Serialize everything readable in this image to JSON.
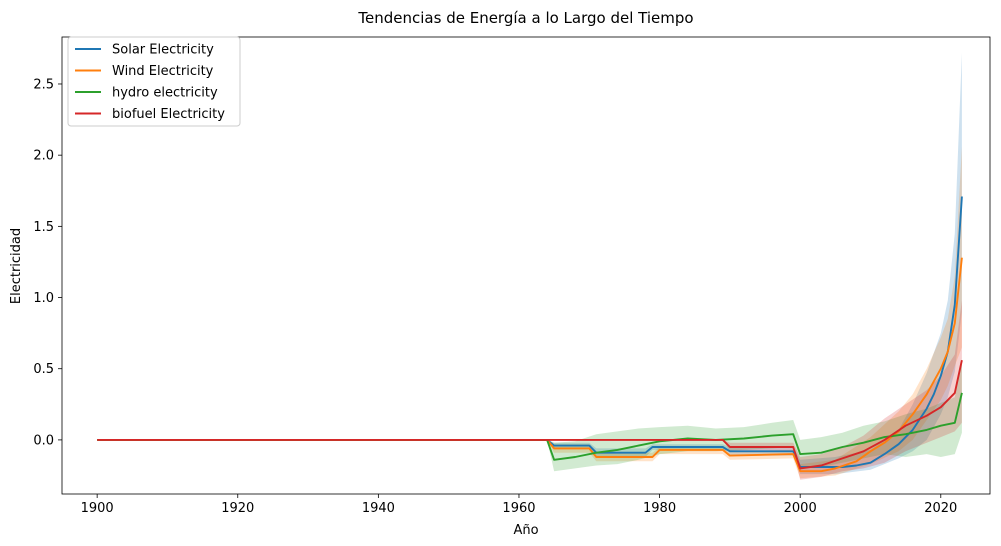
{
  "chart_data": {
    "type": "line",
    "title": "Tendencias de Energía a lo Largo del Tiempo",
    "xlabel": "Año",
    "ylabel": "Electricidad",
    "xlim": [
      1895,
      2027
    ],
    "ylim": [
      -0.38,
      2.83
    ],
    "xticks": [
      1900,
      1920,
      1940,
      1960,
      1980,
      2000,
      2020
    ],
    "yticks": [
      0.0,
      0.5,
      1.0,
      1.5,
      2.0,
      2.5
    ],
    "ytick_labels": [
      "0.0",
      "0.5",
      "1.0",
      "1.5",
      "2.0",
      "2.5"
    ],
    "grid": false,
    "legend_position": "top-left",
    "series": [
      {
        "name": "Solar Electricity",
        "color": "#1f77b4",
        "points": [
          [
            1900,
            0
          ],
          [
            1964,
            0
          ],
          [
            1965,
            -0.04
          ],
          [
            1970,
            -0.04
          ],
          [
            1971,
            -0.09
          ],
          [
            1978,
            -0.09
          ],
          [
            1979,
            -0.05
          ],
          [
            1989,
            -0.05
          ],
          [
            1990,
            -0.08
          ],
          [
            1999,
            -0.08
          ],
          [
            2000,
            -0.19
          ],
          [
            2004,
            -0.19
          ],
          [
            2006,
            -0.19
          ],
          [
            2008,
            -0.18
          ],
          [
            2010,
            -0.16
          ],
          [
            2012,
            -0.1
          ],
          [
            2014,
            -0.03
          ],
          [
            2016,
            0.07
          ],
          [
            2018,
            0.22
          ],
          [
            2019,
            0.32
          ],
          [
            2020,
            0.45
          ],
          [
            2021,
            0.62
          ],
          [
            2022,
            0.95
          ],
          [
            2023,
            1.71
          ]
        ],
        "ci_upper": [
          [
            1964,
            0
          ],
          [
            1965,
            -0.02
          ],
          [
            1970,
            -0.02
          ],
          [
            1971,
            -0.06
          ],
          [
            1978,
            -0.06
          ],
          [
            1979,
            -0.03
          ],
          [
            1989,
            -0.03
          ],
          [
            1990,
            -0.05
          ],
          [
            1999,
            -0.05
          ],
          [
            2000,
            -0.14
          ],
          [
            2005,
            -0.12
          ],
          [
            2010,
            -0.07
          ],
          [
            2014,
            0.07
          ],
          [
            2016,
            0.25
          ],
          [
            2018,
            0.47
          ],
          [
            2020,
            0.75
          ],
          [
            2021,
            0.98
          ],
          [
            2022,
            1.45
          ],
          [
            2023,
            2.72
          ]
        ],
        "ci_lower": [
          [
            1964,
            0
          ],
          [
            1965,
            -0.06
          ],
          [
            1970,
            -0.06
          ],
          [
            1971,
            -0.12
          ],
          [
            1978,
            -0.12
          ],
          [
            1979,
            -0.07
          ],
          [
            1989,
            -0.07
          ],
          [
            1990,
            -0.11
          ],
          [
            1999,
            -0.11
          ],
          [
            2000,
            -0.24
          ],
          [
            2005,
            -0.24
          ],
          [
            2010,
            -0.21
          ],
          [
            2014,
            -0.13
          ],
          [
            2016,
            -0.08
          ],
          [
            2018,
            0.0
          ],
          [
            2020,
            0.18
          ],
          [
            2021,
            0.3
          ],
          [
            2022,
            0.48
          ],
          [
            2023,
            0.9
          ]
        ]
      },
      {
        "name": "Wind Electricity",
        "color": "#ff7f0e",
        "points": [
          [
            1900,
            0
          ],
          [
            1964,
            0
          ],
          [
            1965,
            -0.06
          ],
          [
            1970,
            -0.06
          ],
          [
            1971,
            -0.12
          ],
          [
            1979,
            -0.12
          ],
          [
            1980,
            -0.07
          ],
          [
            1989,
            -0.07
          ],
          [
            1990,
            -0.11
          ],
          [
            1999,
            -0.1
          ],
          [
            2000,
            -0.22
          ],
          [
            2003,
            -0.22
          ],
          [
            2005,
            -0.2
          ],
          [
            2008,
            -0.15
          ],
          [
            2010,
            -0.08
          ],
          [
            2012,
            -0.02
          ],
          [
            2014,
            0.06
          ],
          [
            2016,
            0.18
          ],
          [
            2018,
            0.32
          ],
          [
            2020,
            0.5
          ],
          [
            2021,
            0.62
          ],
          [
            2022,
            0.82
          ],
          [
            2023,
            1.28
          ]
        ],
        "ci_upper": [
          [
            1964,
            0
          ],
          [
            1965,
            -0.03
          ],
          [
            1970,
            -0.03
          ],
          [
            1971,
            -0.09
          ],
          [
            1979,
            -0.09
          ],
          [
            1980,
            -0.05
          ],
          [
            1989,
            -0.05
          ],
          [
            1990,
            -0.08
          ],
          [
            1999,
            -0.07
          ],
          [
            2000,
            -0.17
          ],
          [
            2005,
            -0.14
          ],
          [
            2010,
            0.02
          ],
          [
            2014,
            0.2
          ],
          [
            2016,
            0.32
          ],
          [
            2018,
            0.5
          ],
          [
            2020,
            0.72
          ],
          [
            2021,
            0.85
          ],
          [
            2022,
            1.15
          ],
          [
            2023,
            2.06
          ]
        ],
        "ci_lower": [
          [
            1964,
            0
          ],
          [
            1965,
            -0.09
          ],
          [
            1970,
            -0.09
          ],
          [
            1971,
            -0.15
          ],
          [
            1979,
            -0.15
          ],
          [
            1980,
            -0.1
          ],
          [
            1989,
            -0.1
          ],
          [
            1990,
            -0.14
          ],
          [
            1999,
            -0.13
          ],
          [
            2000,
            -0.27
          ],
          [
            2005,
            -0.25
          ],
          [
            2010,
            -0.17
          ],
          [
            2014,
            -0.08
          ],
          [
            2016,
            0.0
          ],
          [
            2018,
            0.14
          ],
          [
            2020,
            0.28
          ],
          [
            2021,
            0.38
          ],
          [
            2022,
            0.52
          ],
          [
            2023,
            0.65
          ]
        ]
      },
      {
        "name": "hydro electricity",
        "color": "#2ca02c",
        "points": [
          [
            1900,
            0
          ],
          [
            1964,
            0
          ],
          [
            1965,
            -0.14
          ],
          [
            1968,
            -0.12
          ],
          [
            1971,
            -0.09
          ],
          [
            1974,
            -0.07
          ],
          [
            1977,
            -0.04
          ],
          [
            1980,
            -0.01
          ],
          [
            1984,
            0.01
          ],
          [
            1988,
            0.0
          ],
          [
            1992,
            0.01
          ],
          [
            1996,
            0.03
          ],
          [
            1999,
            0.04
          ],
          [
            2000,
            -0.1
          ],
          [
            2003,
            -0.09
          ],
          [
            2006,
            -0.05
          ],
          [
            2009,
            -0.02
          ],
          [
            2012,
            0.02
          ],
          [
            2015,
            0.04
          ],
          [
            2018,
            0.07
          ],
          [
            2020,
            0.1
          ],
          [
            2022,
            0.12
          ],
          [
            2023,
            0.33
          ]
        ],
        "ci_upper": [
          [
            1964,
            0
          ],
          [
            1965,
            -0.02
          ],
          [
            1968,
            -0.01
          ],
          [
            1971,
            0.04
          ],
          [
            1974,
            0.06
          ],
          [
            1977,
            0.08
          ],
          [
            1980,
            0.09
          ],
          [
            1984,
            0.1
          ],
          [
            1988,
            0.08
          ],
          [
            1992,
            0.09
          ],
          [
            1996,
            0.12
          ],
          [
            1999,
            0.14
          ],
          [
            2000,
            0.0
          ],
          [
            2003,
            0.02
          ],
          [
            2006,
            0.05
          ],
          [
            2009,
            0.1
          ],
          [
            2012,
            0.13
          ],
          [
            2015,
            0.18
          ],
          [
            2018,
            0.22
          ],
          [
            2020,
            0.26
          ],
          [
            2022,
            0.3
          ],
          [
            2023,
            0.55
          ]
        ],
        "ci_lower": [
          [
            1964,
            0
          ],
          [
            1965,
            -0.22
          ],
          [
            1968,
            -0.2
          ],
          [
            1971,
            -0.18
          ],
          [
            1974,
            -0.17
          ],
          [
            1977,
            -0.14
          ],
          [
            1980,
            -0.1
          ],
          [
            1984,
            -0.08
          ],
          [
            1988,
            -0.08
          ],
          [
            1992,
            -0.07
          ],
          [
            1996,
            -0.06
          ],
          [
            1999,
            -0.05
          ],
          [
            2000,
            -0.19
          ],
          [
            2003,
            -0.19
          ],
          [
            2006,
            -0.16
          ],
          [
            2009,
            -0.13
          ],
          [
            2012,
            -0.1
          ],
          [
            2015,
            -0.12
          ],
          [
            2018,
            -0.1
          ],
          [
            2020,
            -0.12
          ],
          [
            2022,
            -0.1
          ],
          [
            2023,
            0.05
          ]
        ]
      },
      {
        "name": "biofuel Electricity",
        "color": "#d62728",
        "points": [
          [
            1900,
            0
          ],
          [
            1989,
            0
          ],
          [
            1990,
            -0.05
          ],
          [
            1999,
            -0.05
          ],
          [
            2000,
            -0.2
          ],
          [
            2003,
            -0.18
          ],
          [
            2006,
            -0.13
          ],
          [
            2009,
            -0.08
          ],
          [
            2012,
            0.0
          ],
          [
            2015,
            0.1
          ],
          [
            2018,
            0.17
          ],
          [
            2020,
            0.23
          ],
          [
            2022,
            0.33
          ],
          [
            2023,
            0.56
          ]
        ],
        "ci_upper": [
          [
            1989,
            0
          ],
          [
            1990,
            -0.02
          ],
          [
            1999,
            -0.02
          ],
          [
            2000,
            -0.12
          ],
          [
            2003,
            -0.1
          ],
          [
            2006,
            -0.05
          ],
          [
            2009,
            0.03
          ],
          [
            2012,
            0.15
          ],
          [
            2015,
            0.25
          ],
          [
            2018,
            0.35
          ],
          [
            2020,
            0.45
          ],
          [
            2022,
            0.6
          ],
          [
            2023,
            0.98
          ]
        ],
        "ci_lower": [
          [
            1989,
            0
          ],
          [
            1990,
            -0.08
          ],
          [
            1999,
            -0.08
          ],
          [
            2000,
            -0.28
          ],
          [
            2003,
            -0.26
          ],
          [
            2006,
            -0.22
          ],
          [
            2009,
            -0.2
          ],
          [
            2012,
            -0.16
          ],
          [
            2015,
            -0.08
          ],
          [
            2018,
            -0.02
          ],
          [
            2020,
            0.02
          ],
          [
            2022,
            0.06
          ],
          [
            2023,
            0.12
          ]
        ]
      }
    ]
  }
}
